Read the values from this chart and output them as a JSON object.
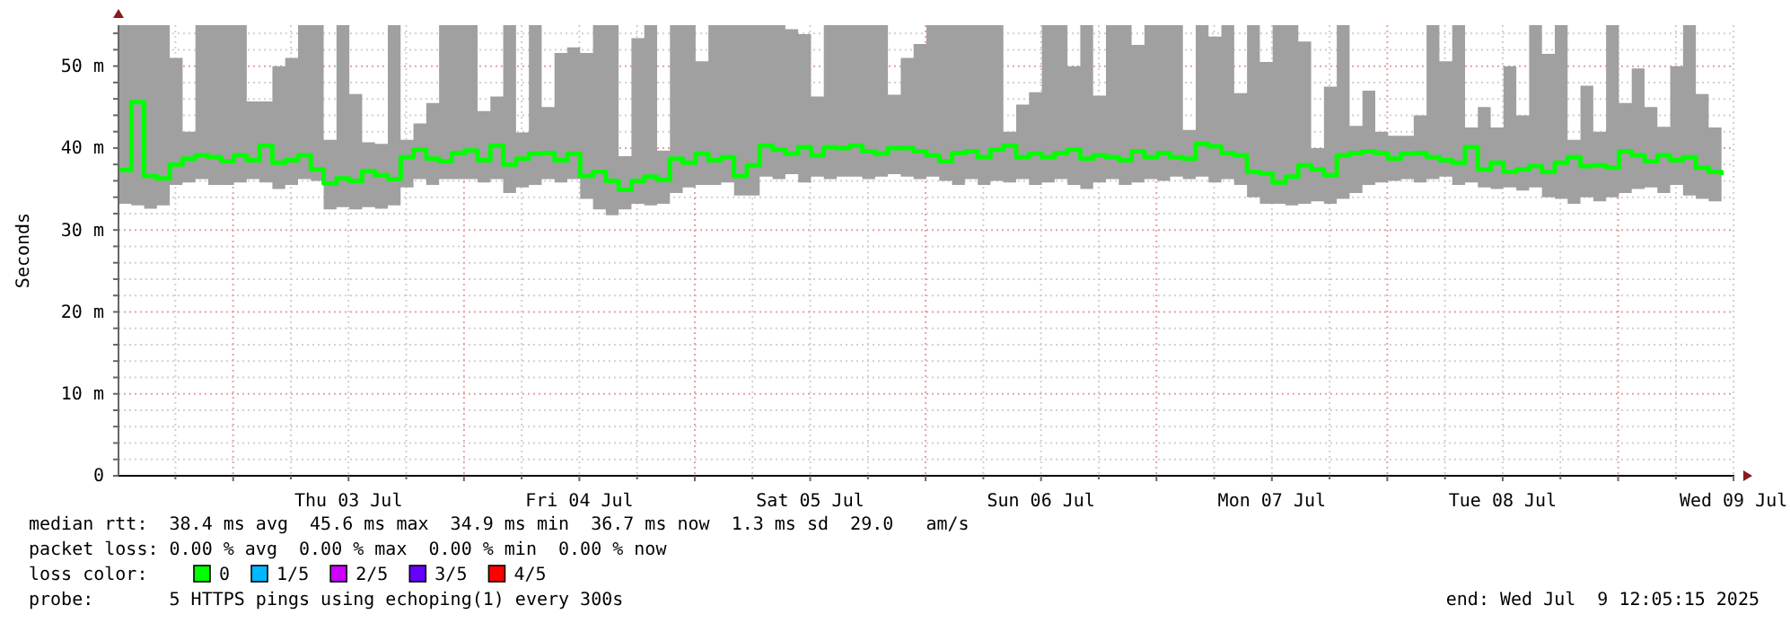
{
  "chart_data": {
    "type": "step",
    "ylabel": "Seconds",
    "legend_title": "loss color:",
    "legend": "bottom left",
    "grid": true,
    "xlim": [
      "2025-07-02T12:05",
      "2025-07-09T12:05"
    ],
    "ylim": [
      0,
      55
    ],
    "yticks": [
      0,
      {
        "value": 2,
        "label": null
      },
      {
        "value": 4,
        "label": null
      },
      {
        "value": 6,
        "label": null
      },
      {
        "value": 8,
        "label": null
      },
      {
        "value": 10,
        "label": "10 m"
      },
      {
        "value": 12,
        "label": null
      },
      {
        "value": 14,
        "label": null
      },
      {
        "value": 16,
        "label": null
      },
      {
        "value": 18,
        "label": null
      },
      {
        "value": 20,
        "label": "20 m"
      },
      {
        "value": 22,
        "label": null
      },
      {
        "value": 24,
        "label": null
      },
      {
        "value": 26,
        "label": null
      },
      {
        "value": 28,
        "label": null
      },
      {
        "value": 30,
        "label": "30 m"
      },
      {
        "value": 32,
        "label": null
      },
      {
        "value": 34,
        "label": null
      },
      {
        "value": 36,
        "label": null
      },
      {
        "value": 38,
        "label": null
      },
      {
        "value": 40,
        "label": "40 m"
      },
      {
        "value": 42,
        "label": null
      },
      {
        "value": 44,
        "label": null
      },
      {
        "value": 46,
        "label": null
      },
      {
        "value": 48,
        "label": null
      },
      {
        "value": 50,
        "label": "50 m"
      },
      {
        "value": 52,
        "label": null
      },
      {
        "value": 54,
        "label": null
      }
    ],
    "xticks": [
      {
        "value": "2025-07-02T18:00",
        "label": null
      },
      {
        "value": "2025-07-03T00:00",
        "label": null
      },
      {
        "value": "2025-07-03T06:00",
        "label": null
      },
      {
        "value": "2025-07-03T12:00",
        "label": "Thu 03 Jul"
      },
      {
        "value": "2025-07-03T18:00",
        "label": null
      },
      {
        "value": "2025-07-04T00:00",
        "label": null
      },
      {
        "value": "2025-07-04T06:00",
        "label": null
      },
      {
        "value": "2025-07-04T12:00",
        "label": "Fri 04 Jul"
      },
      {
        "value": "2025-07-04T18:00",
        "label": null
      },
      {
        "value": "2025-07-05T00:00",
        "label": null
      },
      {
        "value": "2025-07-05T06:00",
        "label": null
      },
      {
        "value": "2025-07-05T12:00",
        "label": "Sat 05 Jul"
      },
      {
        "value": "2025-07-05T18:00",
        "label": null
      },
      {
        "value": "2025-07-06T00:00",
        "label": null
      },
      {
        "value": "2025-07-06T06:00",
        "label": null
      },
      {
        "value": "2025-07-06T12:00",
        "label": "Sun 06 Jul"
      },
      {
        "value": "2025-07-06T18:00",
        "label": null
      },
      {
        "value": "2025-07-07T00:00",
        "label": null
      },
      {
        "value": "2025-07-07T06:00",
        "label": null
      },
      {
        "value": "2025-07-07T12:00",
        "label": "Mon 07 Jul"
      },
      {
        "value": "2025-07-07T18:00",
        "label": null
      },
      {
        "value": "2025-07-08T00:00",
        "label": null
      },
      {
        "value": "2025-07-08T06:00",
        "label": null
      },
      {
        "value": "2025-07-08T12:00",
        "label": "Tue 08 Jul"
      },
      {
        "value": "2025-07-08T18:00",
        "label": null
      },
      {
        "value": "2025-07-09T00:00",
        "label": null
      },
      {
        "value": "2025-07-09T06:00",
        "label": null
      },
      {
        "value": "2025-07-09T12:00",
        "label": "Wed 09 Jul"
      }
    ],
    "x": [
      "2025-07-02T12:05",
      "2025-07-02T13:25",
      "2025-07-02T14:45",
      "2025-07-02T16:05",
      "2025-07-02T17:25",
      "2025-07-02T18:45",
      "2025-07-02T20:05",
      "2025-07-02T21:25",
      "2025-07-02T22:45",
      "2025-07-03T00:05",
      "2025-07-03T01:25",
      "2025-07-03T02:45",
      "2025-07-03T04:05",
      "2025-07-03T05:25",
      "2025-07-03T06:45",
      "2025-07-03T08:05",
      "2025-07-03T09:25",
      "2025-07-03T10:45",
      "2025-07-03T12:05",
      "2025-07-03T13:25",
      "2025-07-03T14:45",
      "2025-07-03T16:05",
      "2025-07-03T17:25",
      "2025-07-03T18:45",
      "2025-07-03T20:05",
      "2025-07-03T21:25",
      "2025-07-03T22:45",
      "2025-07-04T00:05",
      "2025-07-04T01:25",
      "2025-07-04T02:45",
      "2025-07-04T04:05",
      "2025-07-04T05:25",
      "2025-07-04T06:45",
      "2025-07-04T08:05",
      "2025-07-04T09:25",
      "2025-07-04T10:45",
      "2025-07-04T12:05",
      "2025-07-04T13:25",
      "2025-07-04T14:45",
      "2025-07-04T16:05",
      "2025-07-04T17:25",
      "2025-07-04T18:45",
      "2025-07-04T20:05",
      "2025-07-04T21:25",
      "2025-07-04T22:45",
      "2025-07-05T00:05",
      "2025-07-05T01:25",
      "2025-07-05T02:45",
      "2025-07-05T04:05",
      "2025-07-05T05:25",
      "2025-07-05T06:45",
      "2025-07-05T08:05",
      "2025-07-05T09:25",
      "2025-07-05T10:45",
      "2025-07-05T12:05",
      "2025-07-05T13:25",
      "2025-07-05T14:45",
      "2025-07-05T16:05",
      "2025-07-05T17:25",
      "2025-07-05T18:45",
      "2025-07-05T20:05",
      "2025-07-05T21:25",
      "2025-07-05T22:45",
      "2025-07-06T00:05",
      "2025-07-06T01:25",
      "2025-07-06T02:45",
      "2025-07-06T04:05",
      "2025-07-06T05:25",
      "2025-07-06T06:45",
      "2025-07-06T08:05",
      "2025-07-06T09:25",
      "2025-07-06T10:45",
      "2025-07-06T12:05",
      "2025-07-06T13:25",
      "2025-07-06T14:45",
      "2025-07-06T16:05",
      "2025-07-06T17:25",
      "2025-07-06T18:45",
      "2025-07-06T20:05",
      "2025-07-06T21:25",
      "2025-07-06T22:45",
      "2025-07-07T00:05",
      "2025-07-07T01:25",
      "2025-07-07T02:45",
      "2025-07-07T04:05",
      "2025-07-07T05:25",
      "2025-07-07T06:45",
      "2025-07-07T08:05",
      "2025-07-07T09:25",
      "2025-07-07T10:45",
      "2025-07-07T12:05",
      "2025-07-07T13:25",
      "2025-07-07T14:45",
      "2025-07-07T16:05",
      "2025-07-07T17:25",
      "2025-07-07T18:45",
      "2025-07-07T20:05",
      "2025-07-07T21:25",
      "2025-07-07T22:45",
      "2025-07-08T00:05",
      "2025-07-08T01:25",
      "2025-07-08T02:45",
      "2025-07-08T04:05",
      "2025-07-08T05:25",
      "2025-07-08T06:45",
      "2025-07-08T08:05",
      "2025-07-08T09:25",
      "2025-07-08T10:45",
      "2025-07-08T12:05",
      "2025-07-08T13:25",
      "2025-07-08T14:45",
      "2025-07-08T16:05",
      "2025-07-08T17:25",
      "2025-07-08T18:45",
      "2025-07-08T20:05",
      "2025-07-08T21:25",
      "2025-07-08T22:45",
      "2025-07-09T00:05",
      "2025-07-09T01:25",
      "2025-07-09T02:45",
      "2025-07-09T04:05",
      "2025-07-09T05:25",
      "2025-07-09T06:45",
      "2025-07-09T08:05",
      "2025-07-09T09:25",
      "2025-07-09T10:45"
    ],
    "series": [
      {
        "name": "0",
        "color": "#00ff00",
        "values": [
          37.3,
          45.6,
          36.6,
          36.3,
          38.0,
          38.7,
          39.1,
          38.9,
          38.4,
          39.1,
          38.5,
          40.3,
          38.2,
          38.5,
          39.1,
          37.4,
          35.7,
          36.3,
          36.0,
          37.2,
          36.7,
          36.2,
          38.9,
          39.8,
          38.7,
          38.4,
          39.4,
          39.7,
          38.5,
          40.3,
          38.0,
          38.7,
          39.3,
          39.4,
          38.5,
          39.3,
          36.6,
          37.1,
          36.0,
          34.9,
          36.0,
          36.5,
          36.1,
          38.7,
          38.2,
          39.3,
          38.5,
          38.9,
          36.6,
          37.9,
          40.3,
          39.8,
          39.3,
          40.1,
          39.1,
          40.1,
          40.0,
          40.3,
          39.6,
          39.3,
          40.0,
          40.0,
          39.6,
          39.1,
          38.4,
          39.4,
          39.6,
          38.9,
          39.8,
          40.3,
          38.9,
          39.3,
          38.9,
          39.4,
          39.8,
          38.7,
          39.1,
          38.9,
          38.5,
          39.6,
          38.9,
          39.4,
          38.9,
          38.7,
          40.5,
          40.2,
          39.4,
          39.1,
          37.1,
          36.9,
          35.8,
          36.5,
          37.9,
          37.4,
          36.7,
          39.1,
          39.4,
          39.6,
          39.4,
          38.7,
          39.3,
          39.4,
          38.9,
          38.5,
          38.2,
          40.1,
          37.4,
          38.2,
          37.1,
          37.4,
          37.8,
          37.1,
          38.2,
          38.9,
          37.8,
          37.9,
          37.6,
          39.6,
          39.1,
          38.4,
          39.1,
          38.5,
          38.9,
          37.6,
          37.1,
          36.7
        ],
        "lower": [
          33.2,
          33.0,
          32.6,
          33.0,
          35.5,
          35.8,
          36.2,
          35.5,
          35.5,
          35.8,
          36.2,
          35.8,
          35.0,
          35.5,
          36.2,
          36.0,
          32.5,
          32.8,
          32.5,
          32.8,
          32.6,
          33.0,
          35.2,
          36.2,
          35.5,
          36.2,
          36.2,
          36.2,
          35.8,
          36.2,
          34.5,
          35.2,
          35.5,
          36.2,
          35.8,
          36.2,
          33.8,
          32.5,
          31.8,
          32.5,
          33.2,
          33.0,
          33.2,
          34.5,
          35.2,
          35.5,
          35.5,
          35.8,
          34.2,
          34.2,
          36.5,
          36.2,
          36.8,
          35.8,
          36.5,
          36.2,
          36.5,
          36.5,
          36.2,
          36.5,
          36.8,
          36.5,
          36.2,
          36.5,
          36.0,
          35.5,
          36.2,
          35.5,
          36.0,
          35.8,
          36.2,
          35.5,
          35.8,
          36.2,
          35.5,
          35.0,
          35.8,
          36.2,
          35.5,
          35.8,
          36.2,
          36.0,
          36.5,
          36.2,
          36.5,
          35.8,
          36.2,
          35.5,
          34.0,
          33.2,
          33.2,
          33.0,
          33.2,
          33.5,
          33.2,
          33.8,
          34.5,
          35.5,
          35.8,
          36.0,
          36.2,
          35.8,
          36.2,
          36.5,
          35.5,
          35.8,
          35.2,
          35.0,
          35.2,
          34.8,
          35.2,
          34.0,
          33.8,
          33.2,
          34.0,
          33.5,
          34.0,
          34.5,
          35.0,
          35.2,
          34.5,
          35.5,
          34.2,
          33.8,
          33.5,
          33.8
        ],
        "upper": [
          55,
          55,
          55,
          55,
          51,
          42,
          55,
          55,
          55,
          55,
          45.7,
          45.7,
          50,
          51,
          55,
          55,
          41,
          55,
          46.6,
          40.7,
          40.5,
          55,
          41,
          43,
          45.5,
          55,
          55,
          55,
          44.5,
          46.3,
          55,
          41.9,
          55,
          45,
          51.6,
          52.3,
          51.6,
          55,
          55,
          39,
          53.4,
          55,
          39.7,
          55,
          55,
          50.6,
          55,
          55,
          55,
          55,
          55,
          55,
          54.5,
          53.9,
          46.3,
          55,
          55,
          55,
          55,
          55,
          46.5,
          51,
          52.7,
          55,
          55,
          55,
          55,
          55,
          55,
          42,
          45.3,
          46.8,
          55,
          55,
          50,
          55,
          46.4,
          55,
          55,
          52.6,
          55,
          55,
          55,
          42.2,
          55,
          53.6,
          55,
          46.7,
          55,
          50.5,
          55,
          55,
          53,
          40,
          47.5,
          55,
          42.7,
          47,
          42,
          41.5,
          41.5,
          44,
          55,
          50.6,
          55,
          42.5,
          45,
          42.5,
          50,
          44,
          55,
          51.5,
          55,
          41,
          47.6,
          42,
          55,
          45.5,
          49.7,
          45,
          42.6,
          50,
          55,
          46.6,
          42.5,
          41
        ]
      },
      {
        "name": "1/5",
        "color": "#00b8ff",
        "values": [
          null,
          null,
          null,
          null,
          null,
          null,
          null,
          null,
          null,
          null,
          null,
          null,
          null,
          null,
          null,
          null,
          null,
          null,
          null,
          null,
          null,
          null,
          null,
          null,
          null,
          null,
          null,
          null,
          null,
          null,
          null,
          null,
          null,
          null,
          null,
          null,
          null,
          null,
          null,
          null,
          null,
          null,
          null,
          null,
          null,
          null,
          null,
          null,
          null,
          null,
          null,
          null,
          null,
          null,
          null,
          null,
          null,
          null,
          null,
          null,
          null,
          null,
          null,
          null,
          null,
          null,
          null,
          null,
          null,
          null,
          null,
          null,
          null,
          null,
          null,
          null,
          null,
          null,
          null,
          null,
          null,
          null,
          null,
          null,
          null,
          null,
          null,
          null,
          null,
          null,
          null,
          null,
          null,
          null,
          null,
          null,
          null,
          null,
          null,
          null,
          null,
          null,
          null,
          null,
          null,
          null,
          null,
          null,
          null,
          null,
          null,
          null,
          null,
          null,
          null,
          null,
          null,
          null,
          null,
          null,
          null,
          null,
          null,
          null,
          null,
          null
        ]
      },
      {
        "name": "2/5",
        "color": "#cc00ff",
        "values": [
          null,
          null,
          null,
          null,
          null,
          null,
          null,
          null,
          null,
          null,
          null,
          null,
          null,
          null,
          null,
          null,
          null,
          null,
          null,
          null,
          null,
          null,
          null,
          null,
          null,
          null,
          null,
          null,
          null,
          null,
          null,
          null,
          null,
          null,
          null,
          null,
          null,
          null,
          null,
          null,
          null,
          null,
          null,
          null,
          null,
          null,
          null,
          null,
          null,
          null,
          null,
          null,
          null,
          null,
          null,
          null,
          null,
          null,
          null,
          null,
          null,
          null,
          null,
          null,
          null,
          null,
          null,
          null,
          null,
          null,
          null,
          null,
          null,
          null,
          null,
          null,
          null,
          null,
          null,
          null,
          null,
          null,
          null,
          null,
          null,
          null,
          null,
          null,
          null,
          null,
          null,
          null,
          null,
          null,
          null,
          null,
          null,
          null,
          null,
          null,
          null,
          null,
          null,
          null,
          null,
          null,
          null,
          null,
          null,
          null,
          null,
          null,
          null,
          null,
          null,
          null,
          null,
          null,
          null,
          null,
          null,
          null,
          null,
          null,
          null,
          null
        ]
      },
      {
        "name": "3/5",
        "color": "#6600ff",
        "values": [
          null,
          null,
          null,
          null,
          null,
          null,
          null,
          null,
          null,
          null,
          null,
          null,
          null,
          null,
          null,
          null,
          null,
          null,
          null,
          null,
          null,
          null,
          null,
          null,
          null,
          null,
          null,
          null,
          null,
          null,
          null,
          null,
          null,
          null,
          null,
          null,
          null,
          null,
          null,
          null,
          null,
          null,
          null,
          null,
          null,
          null,
          null,
          null,
          null,
          null,
          null,
          null,
          null,
          null,
          null,
          null,
          null,
          null,
          null,
          null,
          null,
          null,
          null,
          null,
          null,
          null,
          null,
          null,
          null,
          null,
          null,
          null,
          null,
          null,
          null,
          null,
          null,
          null,
          null,
          null,
          null,
          null,
          null,
          null,
          null,
          null,
          null,
          null,
          null,
          null,
          null,
          null,
          null,
          null,
          null,
          null,
          null,
          null,
          null,
          null,
          null,
          null,
          null,
          null,
          null,
          null,
          null,
          null,
          null,
          null,
          null,
          null,
          null,
          null,
          null,
          null,
          null,
          null,
          null,
          null,
          null,
          null,
          null,
          null,
          null,
          null
        ]
      },
      {
        "name": "4/5",
        "color": "#ff0000",
        "values": [
          null,
          null,
          null,
          null,
          null,
          null,
          null,
          null,
          null,
          null,
          null,
          null,
          null,
          null,
          null,
          null,
          null,
          null,
          null,
          null,
          null,
          null,
          null,
          null,
          null,
          null,
          null,
          null,
          null,
          null,
          null,
          null,
          null,
          null,
          null,
          null,
          null,
          null,
          null,
          null,
          null,
          null,
          null,
          null,
          null,
          null,
          null,
          null,
          null,
          null,
          null,
          null,
          null,
          null,
          null,
          null,
          null,
          null,
          null,
          null,
          null,
          null,
          null,
          null,
          null,
          null,
          null,
          null,
          null,
          null,
          null,
          null,
          null,
          null,
          null,
          null,
          null,
          null,
          null,
          null,
          null,
          null,
          null,
          null,
          null,
          null,
          null,
          null,
          null,
          null,
          null,
          null,
          null,
          null,
          null,
          null,
          null,
          null,
          null,
          null,
          null,
          null,
          null,
          null,
          null,
          null,
          null,
          null,
          null,
          null,
          null,
          null,
          null,
          null,
          null,
          null,
          null,
          null,
          null,
          null,
          null,
          null,
          null,
          null,
          null,
          null
        ]
      }
    ],
    "annotations": [
      "median rtt:  38.4 ms avg  45.6 ms max  34.9 ms min  36.7 ms now  1.3 ms sd  29.0   am/s",
      "packet loss: 0.00 % avg  0.00 % max  0.00 % min  0.00 % now",
      "probe:       5 HTTPS pings using echoping(1) every 300s",
      "end: Wed Jul  9 12:05:15 2025"
    ]
  }
}
